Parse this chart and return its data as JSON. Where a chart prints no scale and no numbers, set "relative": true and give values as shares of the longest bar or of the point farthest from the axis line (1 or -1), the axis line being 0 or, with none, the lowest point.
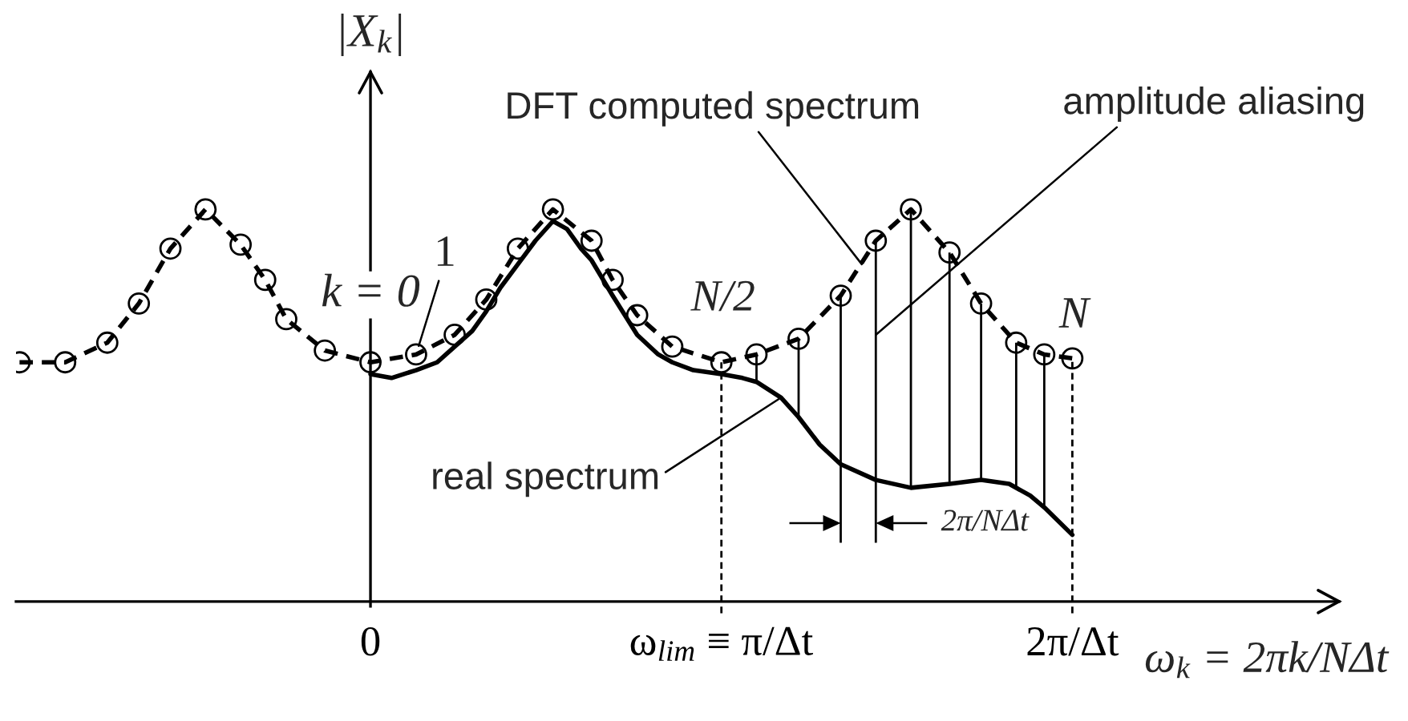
{
  "chart_data": {
    "type": "line",
    "relative": true,
    "xlabel": "ω$_{k}$ = 2πk/NΔt",
    "ylabel": "|X$_{k}$|",
    "xlim": [
      -1.01,
      2.76
    ],
    "xticks": [
      0,
      {
        "value": 1,
        "label": "ω$_{lim}$ ≡ π/Δt"
      },
      {
        "value": 2,
        "label": "2π/Δt"
      }
    ],
    "series": [
      {
        "color": "#000000",
        "line_style": "dashed",
        "marker": "circle",
        "x": [
          -1.0,
          -0.87,
          -0.75,
          -0.66,
          -0.57,
          -0.47,
          -0.37,
          -0.3,
          -0.24,
          -0.13,
          0,
          0.13,
          0.24,
          0.33,
          0.42,
          0.52,
          0.63,
          0.69,
          0.76,
          0.86,
          1.0,
          1.1,
          1.22,
          1.34,
          1.44,
          1.54,
          1.65,
          1.74,
          1.84,
          1.92,
          2.0
        ],
        "values": [
          0.61,
          0.61,
          0.66,
          0.76,
          0.9,
          1.0,
          0.91,
          0.82,
          0.72,
          0.64,
          0.61,
          0.63,
          0.68,
          0.77,
          0.9,
          1.0,
          0.92,
          0.82,
          0.73,
          0.65,
          0.61,
          0.63,
          0.67,
          0.78,
          0.92,
          1.0,
          0.89,
          0.76,
          0.66,
          0.63,
          0.62
        ]
      },
      {
        "type": "line",
        "color": "#000000",
        "line_style": "solid",
        "marker": "none",
        "x": [
          0,
          0.06,
          0.13,
          0.19,
          0.24,
          0.29,
          0.33,
          0.37,
          0.42,
          0.47,
          0.52,
          0.56,
          0.6,
          0.63,
          0.69,
          0.76,
          0.82,
          0.86,
          0.92,
          1.0,
          1.06,
          1.1,
          1.17,
          1.22,
          1.28,
          1.34,
          1.44,
          1.54,
          1.65,
          1.74,
          1.82,
          1.88,
          1.92,
          2.0
        ],
        "values": [
          0.58,
          0.57,
          0.59,
          0.61,
          0.65,
          0.69,
          0.74,
          0.8,
          0.86,
          0.92,
          0.97,
          0.95,
          0.9,
          0.87,
          0.78,
          0.68,
          0.63,
          0.61,
          0.59,
          0.58,
          0.57,
          0.56,
          0.52,
          0.47,
          0.4,
          0.35,
          0.31,
          0.29,
          0.3,
          0.31,
          0.3,
          0.27,
          0.24,
          0.17
        ]
      },
      {
        "type": "line",
        "color": "#000000",
        "line_style": "solid",
        "marker": "none",
        "x": [
          1.1,
          1.1
        ],
        "values": [
          0.56,
          0.63
        ]
      },
      {
        "type": "line",
        "color": "#000000",
        "line_style": "solid",
        "marker": "none",
        "x": [
          1.22,
          1.22
        ],
        "values": [
          0.47,
          0.67
        ]
      },
      {
        "type": "line",
        "color": "#000000",
        "line_style": "solid",
        "marker": "none",
        "x": [
          1.34,
          1.34
        ],
        "values": [
          0.15,
          0.78
        ]
      },
      {
        "type": "line",
        "color": "#000000",
        "line_style": "solid",
        "marker": "none",
        "x": [
          1.44,
          1.44
        ],
        "values": [
          0.15,
          0.92
        ]
      },
      {
        "type": "line",
        "color": "#000000",
        "line_style": "solid",
        "marker": "none",
        "x": [
          1.54,
          1.54
        ],
        "values": [
          0.29,
          1.0
        ]
      },
      {
        "type": "line",
        "color": "#000000",
        "line_style": "solid",
        "marker": "none",
        "x": [
          1.65,
          1.65
        ],
        "values": [
          0.3,
          0.89
        ]
      },
      {
        "type": "line",
        "color": "#000000",
        "line_style": "solid",
        "marker": "none",
        "x": [
          1.74,
          1.74
        ],
        "values": [
          0.31,
          0.76
        ]
      },
      {
        "type": "line",
        "color": "#000000",
        "line_style": "solid",
        "marker": "none",
        "x": [
          1.84,
          1.84
        ],
        "values": [
          0.29,
          0.66
        ]
      },
      {
        "type": "line",
        "color": "#000000",
        "line_style": "solid",
        "marker": "none",
        "x": [
          1.92,
          1.92
        ],
        "values": [
          0.24,
          0.63
        ]
      },
      {
        "type": "line",
        "color": "#000000",
        "line_style": "dashed",
        "marker": "none",
        "x": [
          1.0,
          1.0
        ],
        "values": [
          -0.03,
          0.61
        ]
      },
      {
        "type": "line",
        "color": "#000000",
        "line_style": "dashed",
        "marker": "none",
        "x": [
          2.0,
          2.0
        ],
        "values": [
          -0.03,
          0.62
        ]
      }
    ],
    "annotations": [
      {
        "text": "DFT computed spectrum",
        "x": 1.4,
        "y": 0.86
      },
      {
        "text": "amplitude aliasing",
        "x": 1.44,
        "y": 0.68
      },
      {
        "text": "real spectrum",
        "x": 1.17,
        "y": 0.52
      },
      {
        "text": "k = 0",
        "x": 0,
        "y": 0.61
      },
      {
        "text": "1",
        "x": 0.13,
        "y": 0.63
      },
      {
        "text": "N/2",
        "x": 1.0,
        "y": 0.61
      },
      {
        "text": "N",
        "x": 2.0,
        "y": 0.62
      },
      "2π/NΔt"
    ]
  }
}
